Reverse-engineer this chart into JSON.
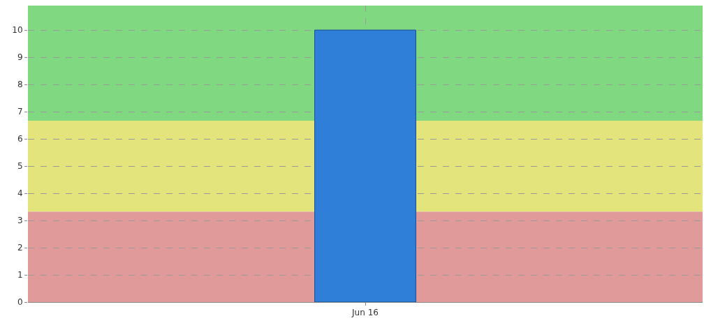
{
  "chart_data": {
    "type": "bar",
    "categories": [
      "Jun 16"
    ],
    "series": [
      {
        "color": "#2f7ed8",
        "values": [
          10
        ]
      }
    ],
    "ylim": [
      0,
      10.9
    ],
    "yticks": [
      0,
      1,
      2,
      3,
      4,
      5,
      6,
      7,
      8,
      9,
      10
    ],
    "grid": true,
    "bands": [
      {
        "axis": "y",
        "from": 0,
        "to": 3.33,
        "color": "#e09a9a"
      },
      {
        "axis": "y",
        "from": 3.33,
        "to": 6.67,
        "color": "#e4e47c"
      },
      {
        "axis": "y",
        "from": 6.67,
        "to": 10.9,
        "color": "#80d880"
      }
    ]
  }
}
